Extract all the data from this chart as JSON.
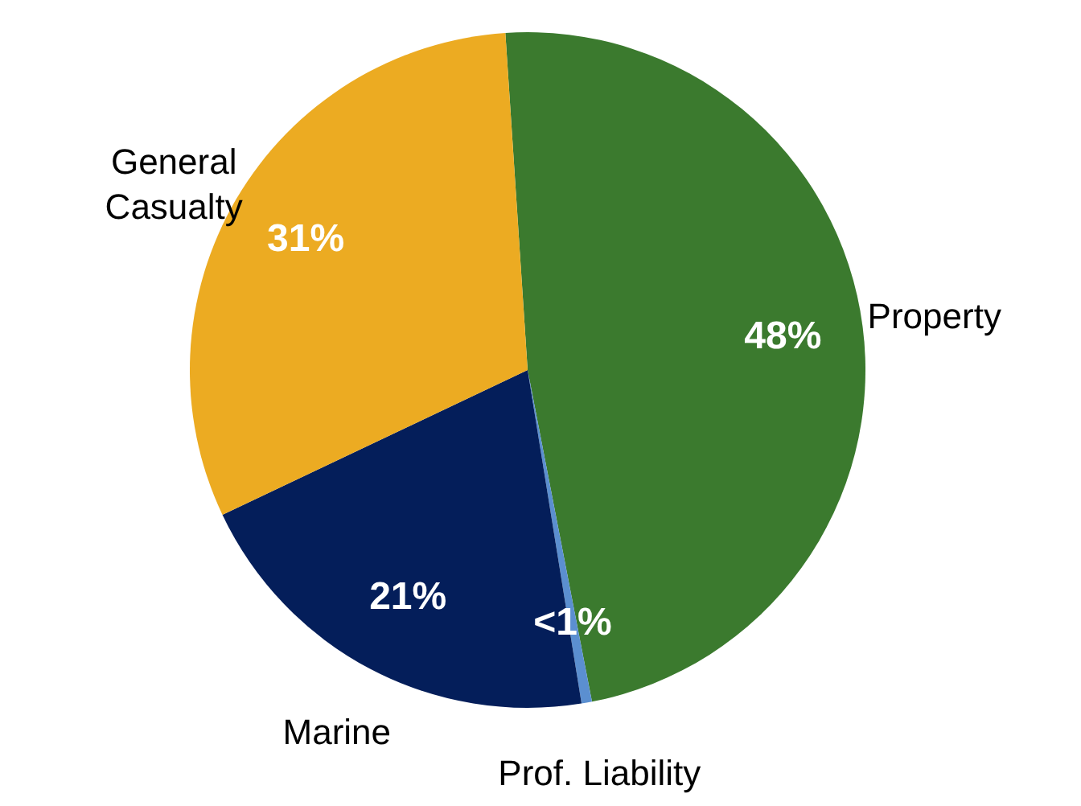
{
  "chart_data": {
    "type": "pie",
    "categories": [
      "Property",
      "Prof. Liability",
      "Marine",
      "General\nCasualty"
    ],
    "values": [
      48,
      0.5,
      20.5,
      31
    ],
    "value_labels": [
      "48%",
      "<1%",
      "21%",
      "31%"
    ],
    "colors": [
      "#3b7a2e",
      "#5b8fd0",
      "#041e5a",
      "#ecab22"
    ]
  }
}
